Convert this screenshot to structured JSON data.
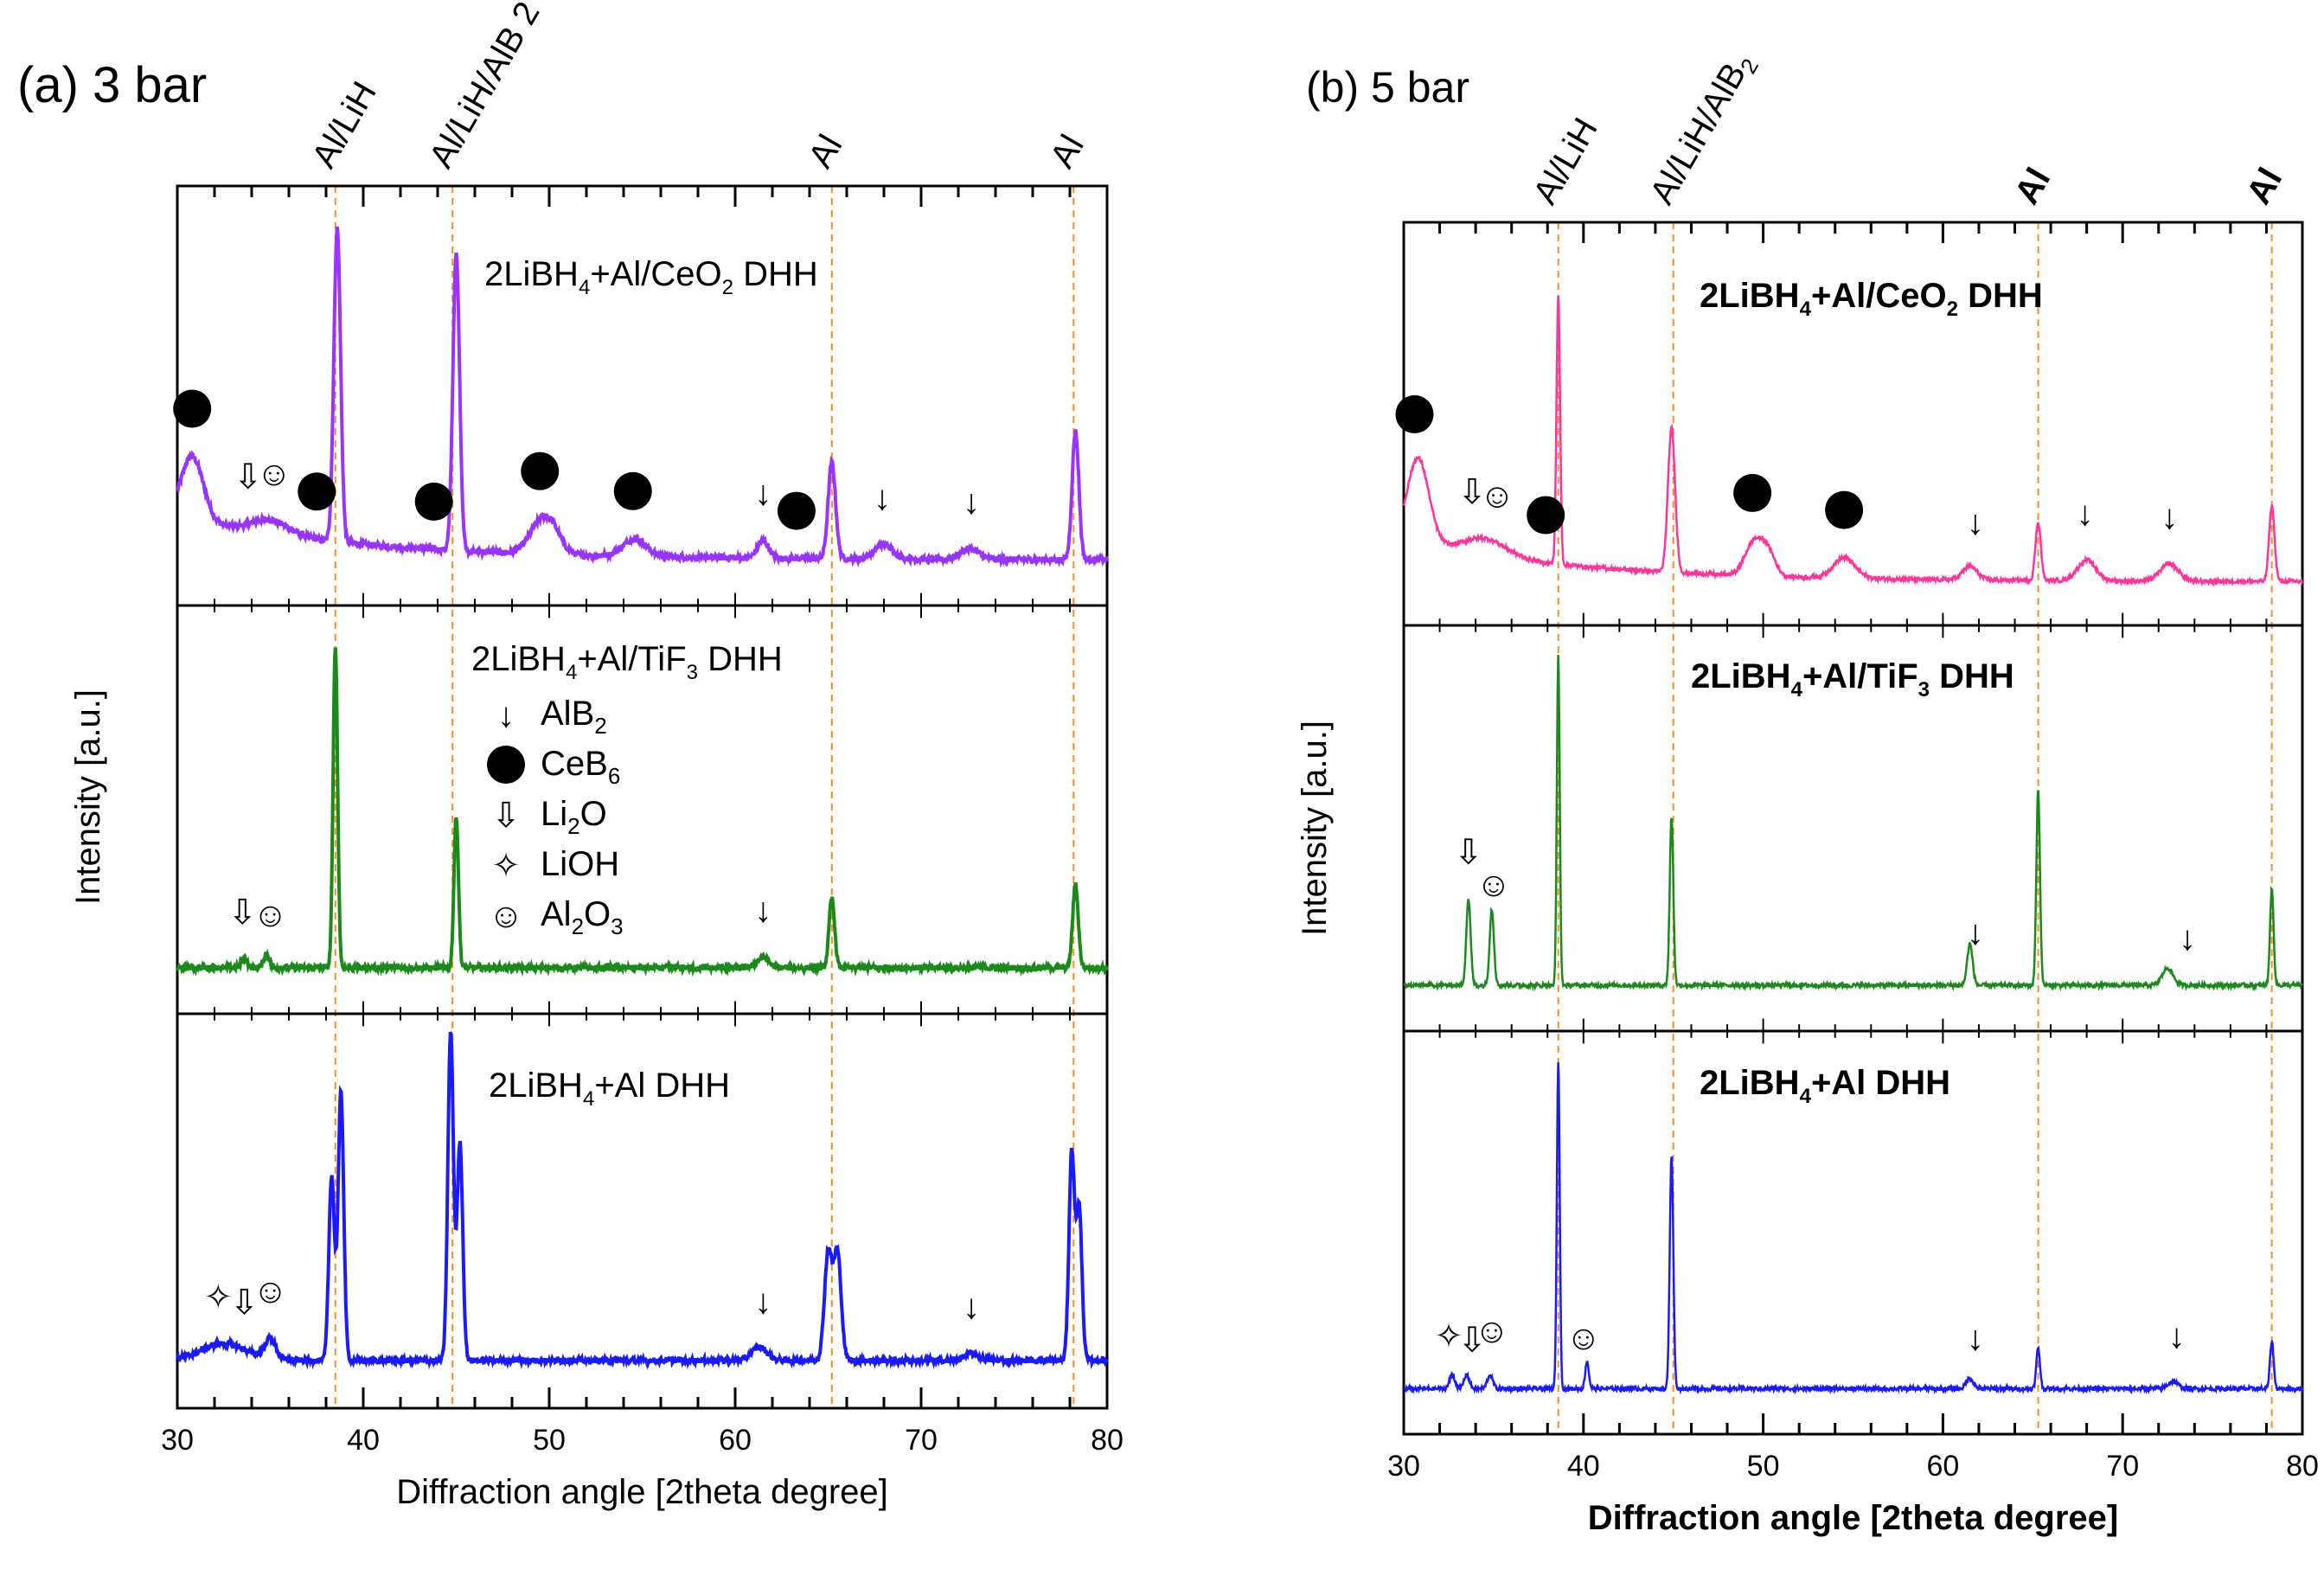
{
  "colors": {
    "ceo2_3bar": "#9933ff",
    "tif3": "#1a8a1a",
    "plain": "#1a1aff",
    "ceo2_5bar": "#ff3399",
    "guide": "#ff8c1a"
  },
  "chart_data": [
    {
      "type": "line",
      "panel": "(a) 3 bar",
      "xlabel": "Diffraction angle [2theta degree]",
      "ylabel": "Intensity [a.u.]",
      "xlim": [
        30,
        80
      ],
      "xticks": [
        "30",
        "40",
        "50",
        "60",
        "70",
        "80"
      ],
      "top_labels": [
        {
          "text": "Al/LiH",
          "x": 38.5
        },
        {
          "text": "Al/LiH/AlB 2",
          "x": 44.8
        },
        {
          "text": "Al",
          "x": 65.2
        },
        {
          "text": "Al",
          "x": 78.2
        }
      ],
      "guide_lines": [
        38.5,
        44.8,
        65.2,
        78.2
      ],
      "legend": [
        {
          "symbol": "arrow",
          "text": "AlB",
          "sub": "2"
        },
        {
          "symbol": "star",
          "text": "CeB",
          "sub": "6"
        },
        {
          "symbol": "hollow-arrow",
          "text": "Li",
          "sub": "2",
          "suffix": "O"
        },
        {
          "symbol": "sparkle",
          "text": "LiOH",
          "sub": "",
          "suffix": ""
        },
        {
          "symbol": "face",
          "text": "Al",
          "sub": "2",
          "suffix": "O",
          "sub2": "3"
        }
      ],
      "series": [
        {
          "name": "2LiBH4+Al/CeO2 DHH",
          "title_parts": [
            "2LiBH",
            "4",
            "+Al/CeO",
            "2",
            " DHH"
          ],
          "color_key": "ceo2_3bar",
          "peaks": [
            [
              30.8,
              0.18,
              0.6
            ],
            [
              35.0,
              0.04,
              1.0
            ],
            [
              38.6,
              0.88,
              0.18
            ],
            [
              45.0,
              0.83,
              0.18
            ],
            [
              49.5,
              0.08,
              0.6
            ],
            [
              50.2,
              0.05,
              0.5
            ],
            [
              54.6,
              0.05,
              0.6
            ],
            [
              61.5,
              0.05,
              0.3
            ],
            [
              65.2,
              0.27,
              0.2
            ],
            [
              68.0,
              0.04,
              0.5
            ],
            [
              72.6,
              0.03,
              0.5
            ],
            [
              78.3,
              0.36,
              0.18
            ]
          ],
          "markers": [
            {
              "sym": "star",
              "x": 30.8
            },
            {
              "sym": "hollow-arrow",
              "x": 33.8
            },
            {
              "sym": "face",
              "x": 35.2
            },
            {
              "sym": "star",
              "x": 37.5
            },
            {
              "sym": "star",
              "x": 43.8
            },
            {
              "sym": "star",
              "x": 49.5
            },
            {
              "sym": "star",
              "x": 54.5
            },
            {
              "sym": "arrow",
              "x": 61.5
            },
            {
              "sym": "star",
              "x": 63.3
            },
            {
              "sym": "arrow",
              "x": 67.9
            },
            {
              "sym": "arrow",
              "x": 72.7
            }
          ]
        },
        {
          "name": "2LiBH4+Al/TiF3 DHH",
          "title_parts": [
            "2LiBH",
            "4",
            "+Al/TiF",
            "3",
            " DHH"
          ],
          "color_key": "tif3",
          "peaks": [
            [
              33.6,
              0.03,
              0.15
            ],
            [
              34.8,
              0.04,
              0.15
            ],
            [
              38.5,
              0.93,
              0.12
            ],
            [
              45.0,
              0.44,
              0.12
            ],
            [
              61.5,
              0.03,
              0.3
            ],
            [
              65.2,
              0.2,
              0.15
            ],
            [
              78.3,
              0.24,
              0.15
            ]
          ],
          "markers": [
            {
              "sym": "hollow-arrow",
              "x": 33.5
            },
            {
              "sym": "face",
              "x": 35.0
            },
            {
              "sym": "arrow",
              "x": 61.5
            }
          ]
        },
        {
          "name": "2LiBH4+Al DHH",
          "title_parts": [
            "2LiBH",
            "4",
            "+Al DHH"
          ],
          "color_key": "plain",
          "peaks": [
            [
              32.5,
              0.05,
              1.2
            ],
            [
              35.0,
              0.06,
              0.3
            ],
            [
              38.3,
              0.55,
              0.15
            ],
            [
              38.8,
              0.8,
              0.15
            ],
            [
              44.7,
              0.98,
              0.15
            ],
            [
              45.2,
              0.65,
              0.15
            ],
            [
              61.3,
              0.04,
              0.4
            ],
            [
              65.0,
              0.32,
              0.2
            ],
            [
              65.5,
              0.32,
              0.2
            ],
            [
              72.7,
              0.02,
              0.4
            ],
            [
              78.1,
              0.62,
              0.15
            ],
            [
              78.5,
              0.45,
              0.15
            ]
          ],
          "markers": [
            {
              "sym": "sparkle",
              "x": 32.2
            },
            {
              "sym": "hollow-arrow",
              "x": 33.6
            },
            {
              "sym": "face",
              "x": 35.0
            },
            {
              "sym": "arrow",
              "x": 61.5
            },
            {
              "sym": "arrow",
              "x": 72.7
            }
          ]
        }
      ]
    },
    {
      "type": "line",
      "panel": "(b) 5 bar",
      "xlabel": "Diffraction angle [2theta degree]",
      "ylabel": "Intensity [a.u.]",
      "xlim": [
        30,
        80
      ],
      "xticks": [
        "30",
        "40",
        "50",
        "60",
        "70",
        "80"
      ],
      "top_labels": [
        {
          "text": "Al/LiH",
          "x": 38.5
        },
        {
          "text": "Al/LiH/AlB",
          "sub": "2",
          "x": 45.0
        },
        {
          "text": "Al",
          "x": 65.3
        },
        {
          "text": "Al",
          "x": 78.2
        }
      ],
      "guide_lines": [
        38.6,
        45.0,
        65.3,
        78.3
      ],
      "series": [
        {
          "name": "2LiBH4+Al/CeO2 DHH",
          "title_parts": [
            "2LiBH",
            "4",
            "+Al/CeO",
            "2",
            " DHH"
          ],
          "color_key": "ceo2_5bar",
          "peaks": [
            [
              30.8,
              0.25,
              0.6
            ],
            [
              34.5,
              0.05,
              1.2
            ],
            [
              38.6,
              0.78,
              0.1
            ],
            [
              44.9,
              0.42,
              0.2
            ],
            [
              49.5,
              0.1,
              0.5
            ],
            [
              50.3,
              0.06,
              0.4
            ],
            [
              54.5,
              0.06,
              0.6
            ],
            [
              61.5,
              0.04,
              0.4
            ],
            [
              65.3,
              0.17,
              0.15
            ],
            [
              68.0,
              0.06,
              0.5
            ],
            [
              72.6,
              0.05,
              0.5
            ],
            [
              78.3,
              0.22,
              0.15
            ]
          ],
          "markers": [
            {
              "sym": "star",
              "x": 30.6
            },
            {
              "sym": "hollow-arrow",
              "x": 33.8
            },
            {
              "sym": "face",
              "x": 35.2
            },
            {
              "sym": "star",
              "x": 37.9
            },
            {
              "sym": "star",
              "x": 49.4
            },
            {
              "sym": "star",
              "x": 54.5
            },
            {
              "sym": "arrow",
              "x": 61.8
            },
            {
              "sym": "arrow",
              "x": 67.9
            },
            {
              "sym": "arrow",
              "x": 72.6
            }
          ]
        },
        {
          "name": "2LiBH4+Al/TiF3 DHH",
          "title_parts": [
            "2LiBH",
            "4",
            "+Al/TiF",
            "3",
            " DHH"
          ],
          "color_key": "tif3",
          "peaks": [
            [
              33.6,
              0.25,
              0.12
            ],
            [
              34.9,
              0.22,
              0.12
            ],
            [
              38.6,
              0.96,
              0.08
            ],
            [
              44.9,
              0.49,
              0.1
            ],
            [
              61.5,
              0.12,
              0.15
            ],
            [
              65.3,
              0.57,
              0.1
            ],
            [
              72.5,
              0.05,
              0.3
            ],
            [
              78.3,
              0.28,
              0.1
            ]
          ],
          "markers": [
            {
              "sym": "hollow-arrow",
              "x": 33.6
            },
            {
              "sym": "face",
              "x": 35.0
            },
            {
              "sym": "arrow",
              "x": 61.8
            },
            {
              "sym": "arrow",
              "x": 73.6
            }
          ]
        },
        {
          "name": "2LiBH4+Al DHH",
          "title_parts": [
            "2LiBH",
            "4",
            "+Al DHH"
          ],
          "color_key": "plain",
          "peaks": [
            [
              32.7,
              0.04,
              0.15
            ],
            [
              33.5,
              0.04,
              0.15
            ],
            [
              34.8,
              0.04,
              0.15
            ],
            [
              38.6,
              0.96,
              0.08
            ],
            [
              40.2,
              0.08,
              0.1
            ],
            [
              44.9,
              0.68,
              0.1
            ],
            [
              61.5,
              0.03,
              0.2
            ],
            [
              65.3,
              0.12,
              0.1
            ],
            [
              72.8,
              0.02,
              0.3
            ],
            [
              78.3,
              0.14,
              0.1
            ]
          ],
          "markers": [
            {
              "sym": "sparkle",
              "x": 32.5
            },
            {
              "sym": "hollow-arrow",
              "x": 33.8
            },
            {
              "sym": "face",
              "x": 34.9
            },
            {
              "sym": "face",
              "x": 40.0
            },
            {
              "sym": "arrow",
              "x": 61.8
            },
            {
              "sym": "arrow",
              "x": 73.0
            }
          ]
        }
      ]
    }
  ]
}
